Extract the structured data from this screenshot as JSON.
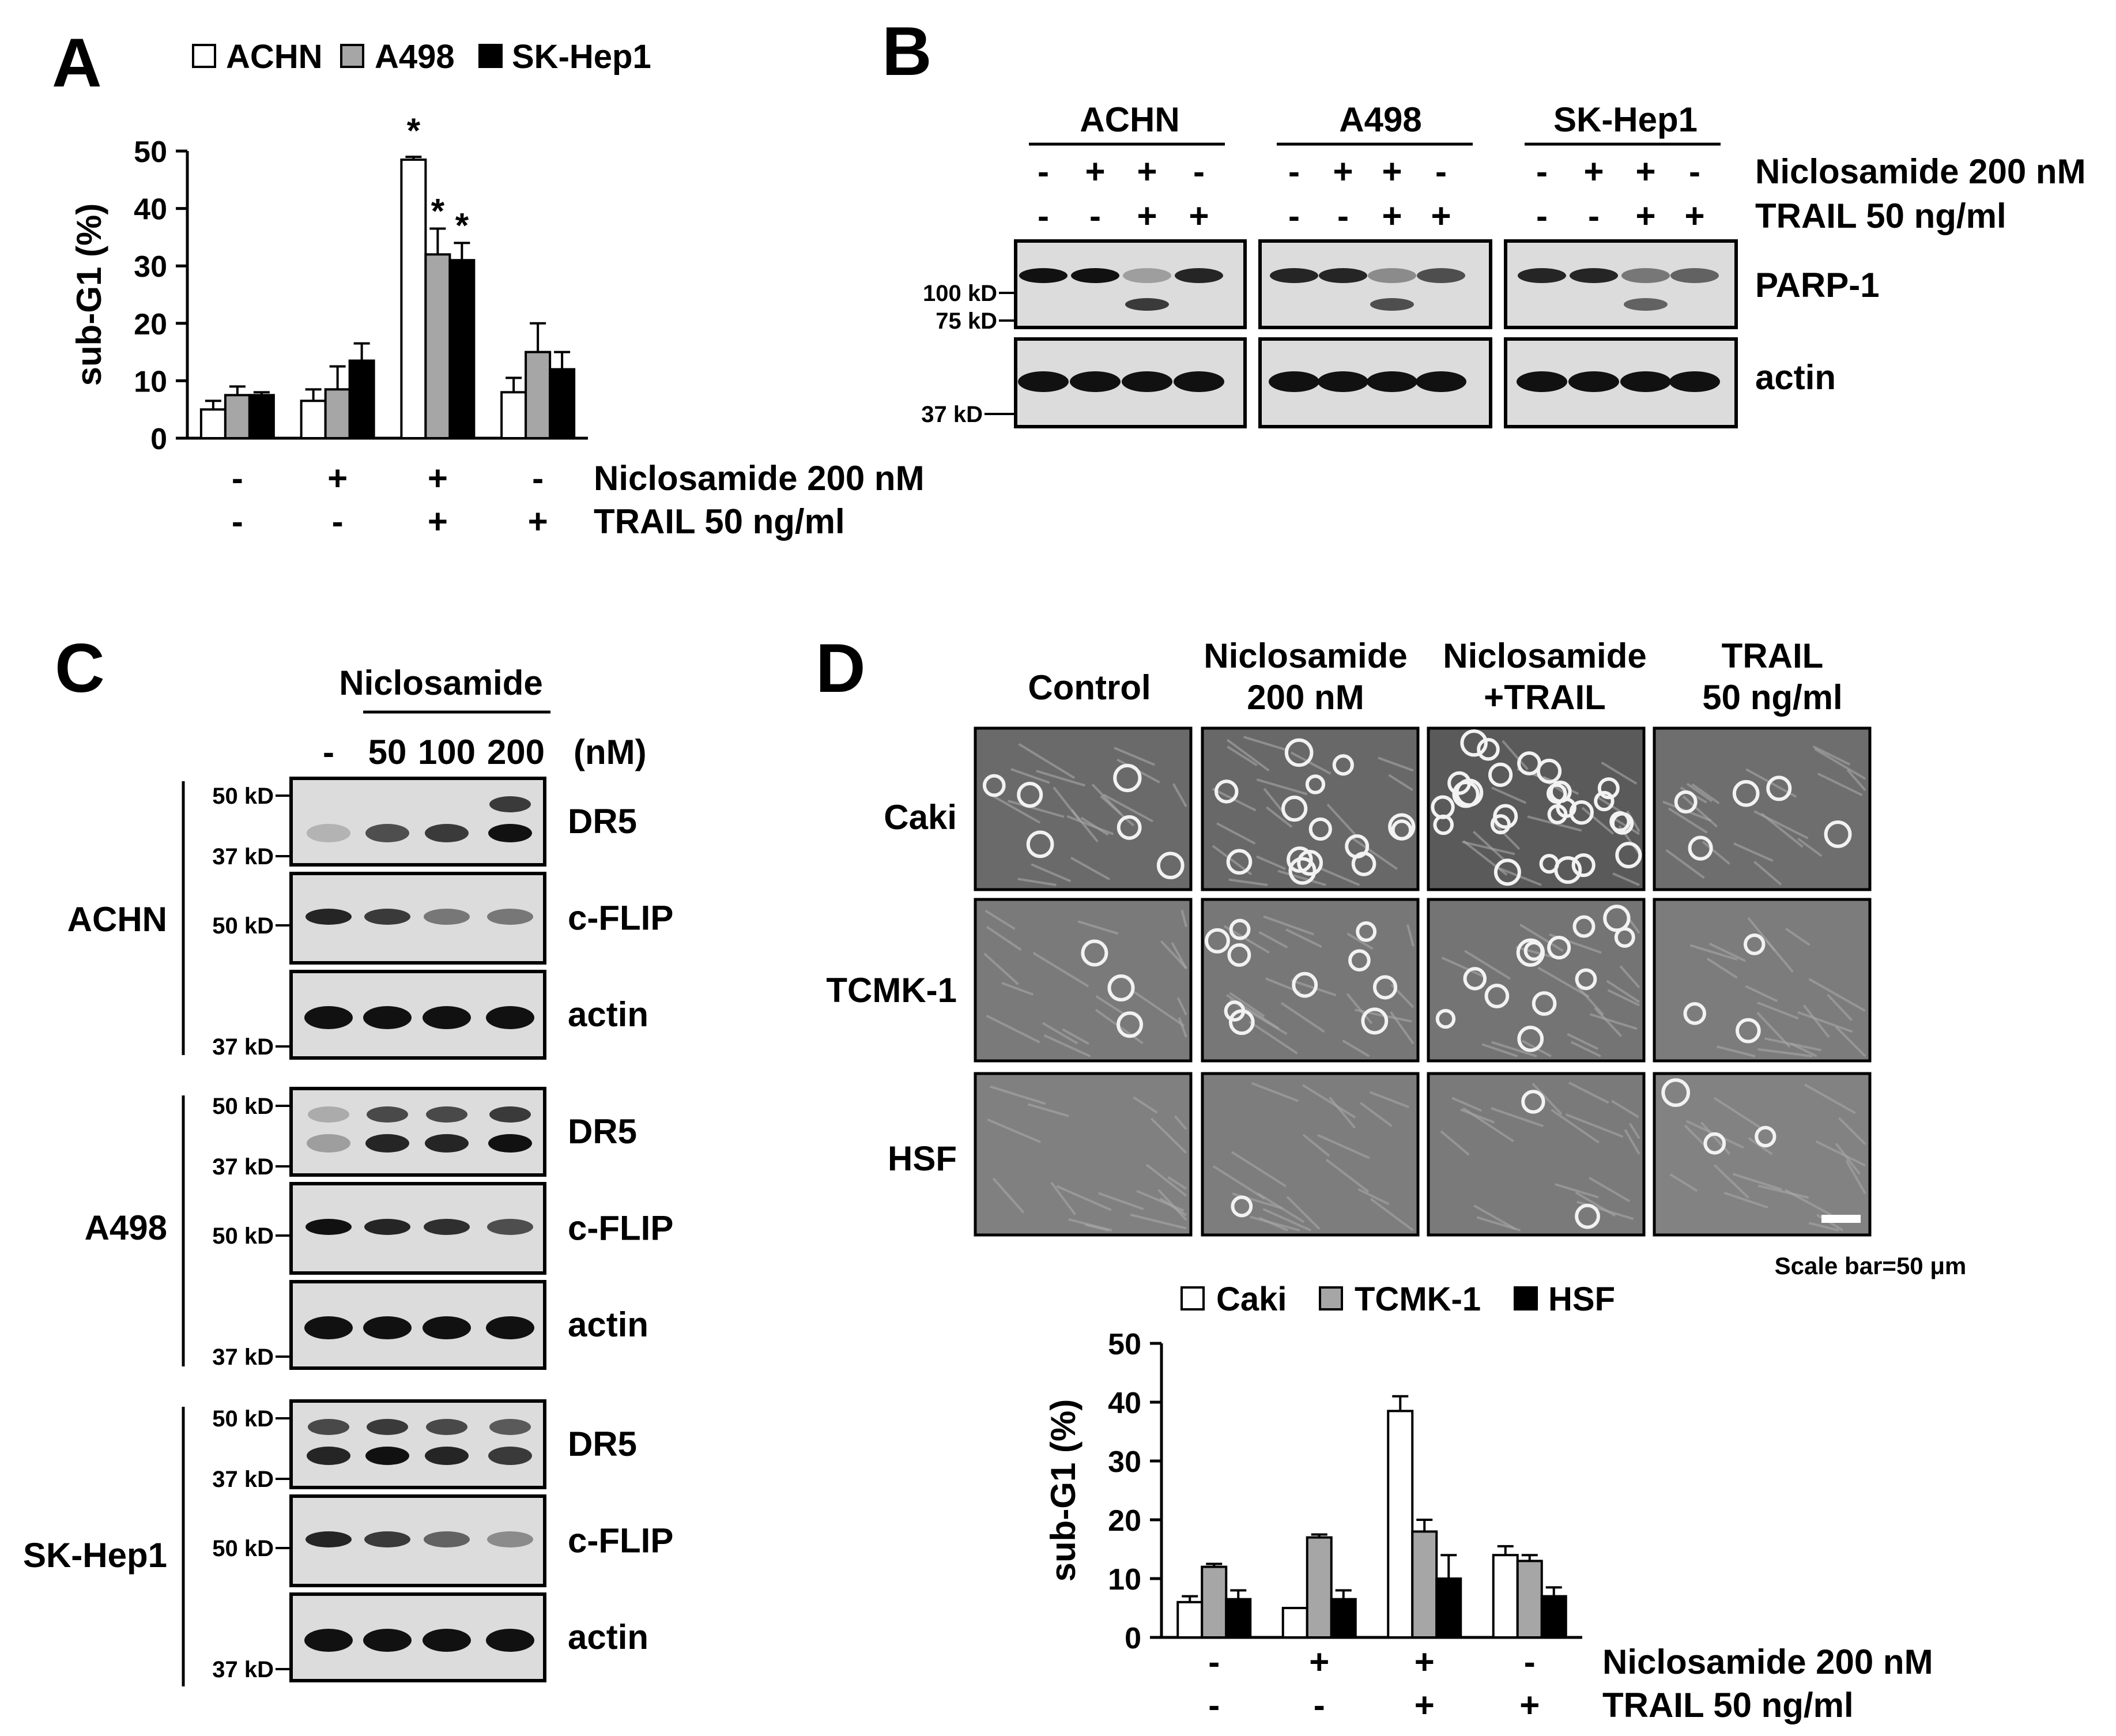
{
  "panels": {
    "A": "A",
    "B": "B",
    "C": "C",
    "D": "D"
  },
  "conditions": {
    "niclosamide": [
      "-",
      "+",
      "+",
      "-"
    ],
    "trail": [
      "-",
      "-",
      "+",
      "+"
    ],
    "niclosamide_label_A": "Niclosamide 200  nM",
    "niclosamide_label": "Niclosamide 200 nM",
    "trail_label": "TRAIL 50 ng/ml"
  },
  "colors": {
    "white_bar": "#ffffff",
    "gray_bar": "#a6a6a6",
    "black_bar": "#000000",
    "blot_bg": "#dcdcdc"
  },
  "chart_data": [
    {
      "panel": "A",
      "type": "bar",
      "ylabel": "sub-G1 (%)",
      "ylim": [
        0,
        50
      ],
      "yticks": [
        0,
        10,
        20,
        30,
        40,
        50
      ],
      "categories": [
        "Niclosamide - / TRAIL -",
        "Niclosamide + / TRAIL -",
        "Niclosamide + / TRAIL +",
        "Niclosamide - / TRAIL +"
      ],
      "series": [
        {
          "name": "ACHN",
          "color": "#ffffff",
          "values": [
            5,
            6.5,
            48.5,
            8
          ],
          "errors": [
            1.5,
            2,
            0.5,
            2.5
          ]
        },
        {
          "name": "A498",
          "color": "#a6a6a6",
          "values": [
            7.5,
            8.5,
            32,
            15
          ],
          "errors": [
            1.5,
            4,
            4.5,
            5
          ]
        },
        {
          "name": "SK-Hep1",
          "color": "#000000",
          "values": [
            7.5,
            13.5,
            31,
            12
          ],
          "errors": [
            0.5,
            3,
            3,
            3
          ]
        }
      ],
      "annotations": [
        "*",
        "*",
        "*"
      ],
      "legend": "top"
    },
    {
      "panel": "D",
      "type": "bar",
      "ylabel": "sub-G1 (%)",
      "ylim": [
        0,
        50
      ],
      "yticks": [
        0,
        10,
        20,
        30,
        40,
        50
      ],
      "categories": [
        "Niclosamide - / TRAIL -",
        "Niclosamide + / TRAIL -",
        "Niclosamide + / TRAIL +",
        "Niclosamide - / TRAIL +"
      ],
      "series": [
        {
          "name": "Caki",
          "color": "#ffffff",
          "values": [
            6,
            5,
            38.5,
            14
          ],
          "errors": [
            1,
            0,
            2.5,
            1.5
          ]
        },
        {
          "name": "TCMK-1",
          "color": "#a6a6a6",
          "values": [
            12,
            17,
            18,
            13
          ],
          "errors": [
            0.5,
            0.5,
            2,
            1
          ]
        },
        {
          "name": "HSF",
          "color": "#000000",
          "values": [
            6.5,
            6.5,
            10,
            7
          ],
          "errors": [
            1.5,
            1.5,
            4,
            1.5
          ]
        }
      ],
      "legend": "top"
    }
  ],
  "panel_b": {
    "cell_lines": [
      "ACHN",
      "A498",
      "SK-Hep1"
    ],
    "niclosamide_label": "Niclosamide 200 nM",
    "trail_label": "TRAIL 50 ng/ml",
    "proteins": [
      "PARP-1",
      "actin"
    ],
    "markers": [
      "100 kD",
      "75 kD",
      "37 kD"
    ]
  },
  "panel_c": {
    "treatment": "Niclosamide",
    "doses": [
      "-",
      "50",
      "100",
      "200"
    ],
    "unit": "(nM)",
    "cell_lines": [
      "ACHN",
      "A498",
      "SK-Hep1"
    ],
    "proteins": [
      "DR5",
      "c-FLIP",
      "actin"
    ],
    "markers": {
      "ACHN": [
        "50 kD",
        "37 kD",
        "50 kD",
        "37 kD"
      ],
      "A498": [
        "50 kD",
        "37 kD",
        "50 kD",
        "37 kD"
      ],
      "SK-Hep1": [
        "50 kD",
        "37 kD",
        "50 kD",
        "37 kD"
      ]
    }
  },
  "panel_d": {
    "columns": [
      "Control",
      "Niclosamide",
      "200 nM",
      "Niclosamide",
      "+TRAIL",
      "TRAIL",
      "50 ng/ml"
    ],
    "rows": [
      "Caki",
      "TCMK-1",
      "HSF"
    ],
    "scale_bar": "Scale bar=50 μm"
  }
}
